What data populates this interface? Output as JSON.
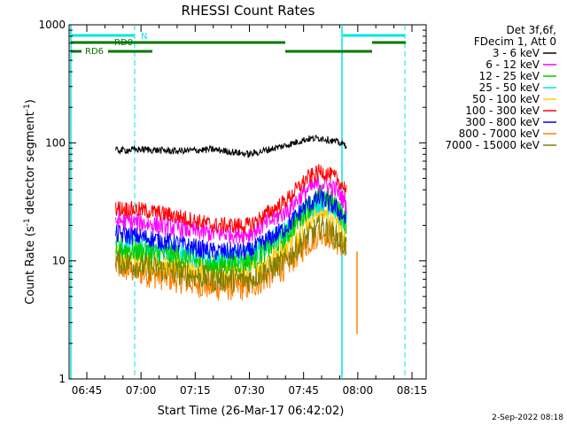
{
  "chart_data": {
    "type": "line",
    "title": "RHESSI Count Rates",
    "xlabel": "Start Time (26-Mar-17 06:42:02)",
    "ylabel": "Count Rate (s",
    "ylabel_sup1": "-1",
    "ylabel_mid": " detector segment",
    "ylabel_sup2": "-1",
    "ylabel_end": ")",
    "y_scale": "log",
    "ylim": [
      1,
      1000
    ],
    "xlim_minutes": [
      40,
      122
    ],
    "x_ticks": [
      {
        "m": 45,
        "label": "06:45"
      },
      {
        "m": 60,
        "label": "07:00"
      },
      {
        "m": 75,
        "label": "07:15"
      },
      {
        "m": 90,
        "label": "07:30"
      },
      {
        "m": 105,
        "label": "07:45"
      },
      {
        "m": 120,
        "label": "08:00"
      },
      {
        "m": 135,
        "label": "08:15"
      }
    ],
    "y_ticks": [
      {
        "v": 1,
        "label": "1"
      },
      {
        "v": 10,
        "label": "10"
      },
      {
        "v": 100,
        "label": "100"
      },
      {
        "v": 1000,
        "label": "1000"
      }
    ],
    "legend_header": [
      "Det 3f,6f,",
      "FDecim 1, Att 0"
    ],
    "legend_placement": "right",
    "series": [
      {
        "name": "3 - 6 keV",
        "color": "#000000",
        "x": [
          53,
          60,
          70,
          80,
          90,
          100,
          106,
          110,
          114,
          117
        ],
        "y": [
          86,
          88,
          85,
          88,
          80,
          95,
          108,
          110,
          102,
          95
        ]
      },
      {
        "name": "6 - 12 keV",
        "color": "#ff00ff",
        "x": [
          53,
          60,
          70,
          80,
          90,
          100,
          106,
          110,
          114,
          117
        ],
        "y": [
          22,
          21,
          19,
          17,
          17,
          26,
          40,
          46,
          40,
          30
        ]
      },
      {
        "name": "12 - 25 keV",
        "color": "#00cc00",
        "x": [
          53,
          60,
          70,
          80,
          90,
          100,
          106,
          110,
          114,
          117
        ],
        "y": [
          13,
          12,
          11,
          9,
          10,
          16,
          28,
          36,
          30,
          20
        ]
      },
      {
        "name": "25 - 50 keV",
        "color": "#00e5e5",
        "x": [
          53,
          60,
          70,
          80,
          90,
          100,
          106,
          110,
          114,
          117
        ],
        "y": [
          14,
          13,
          12,
          10,
          11,
          18,
          28,
          33,
          28,
          20
        ]
      },
      {
        "name": "50 - 100 keV",
        "color": "#ffcc00",
        "x": [
          53,
          60,
          70,
          80,
          90,
          100,
          106,
          110,
          114,
          117
        ],
        "y": [
          11,
          10,
          9,
          8,
          8,
          13,
          22,
          27,
          22,
          16
        ]
      },
      {
        "name": "100 - 300 keV",
        "color": "#ff0000",
        "x": [
          53,
          60,
          70,
          80,
          90,
          100,
          106,
          110,
          114,
          117
        ],
        "y": [
          28,
          27,
          24,
          20,
          20,
          32,
          50,
          58,
          50,
          40
        ]
      },
      {
        "name": "300 - 800 keV",
        "color": "#0000ff",
        "x": [
          53,
          60,
          70,
          80,
          90,
          100,
          106,
          110,
          114,
          117
        ],
        "y": [
          17,
          16,
          14,
          12,
          12,
          19,
          30,
          34,
          28,
          22
        ]
      },
      {
        "name": "800 - 7000 keV",
        "color": "#ff8000",
        "x": [
          53,
          60,
          70,
          80,
          90,
          100,
          106,
          110,
          114,
          117
        ],
        "y": [
          9,
          8,
          7,
          6,
          6,
          9,
          14,
          18,
          15,
          12
        ]
      },
      {
        "name": "7000 - 15000 keV",
        "color": "#808000",
        "x": [
          53,
          60,
          70,
          80,
          90,
          100,
          106,
          110,
          114,
          117
        ],
        "y": [
          10,
          9,
          8,
          7,
          7,
          10,
          16,
          20,
          16,
          13
        ]
      }
    ],
    "annotations": {
      "N_label": "N",
      "RD0_label": "RD0",
      "RD6_label": "RD6"
    }
  },
  "footer": {
    "timestamp": "2-Sep-2022 08:18"
  }
}
